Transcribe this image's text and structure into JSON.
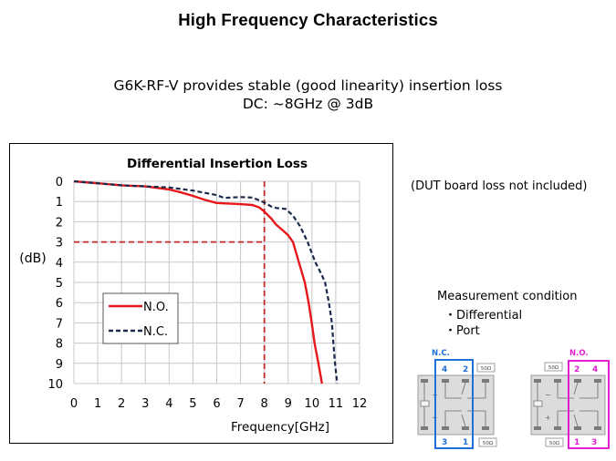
{
  "slide": {
    "title": "High Frequency Characteristics",
    "subtitle_line1": "G6K-RF-V provides stable (good linearity) insertion loss",
    "subtitle_line2": "DC: ~8GHz @ 3dB"
  },
  "side_panel": {
    "note": "(DUT board loss not included)",
    "measurement_title": "Measurement condition",
    "measurement_items": [
      "・Differential",
      "・Port"
    ]
  },
  "diagrams": {
    "nc": {
      "label": "N.C.",
      "ports_top": [
        "4",
        "2"
      ],
      "ports_bottom": [
        "3",
        "1"
      ],
      "termination_top": "50Ω",
      "termination_bottom": "50Ω",
      "color": "#1f6fd6"
    },
    "no": {
      "label": "N.O.",
      "ports_top": [
        "2",
        "4"
      ],
      "ports_bottom": [
        "1",
        "3"
      ],
      "termination_top": "50Ω",
      "termination_bottom": "50Ω",
      "color": "#e020d0"
    },
    "coil_minus": "−",
    "coil_plus": "+"
  },
  "chart_data": {
    "type": "line",
    "title": "Differential Insertion Loss",
    "xlabel": "Frequency[GHz]",
    "ylabel": "(dB)",
    "xlim": [
      0,
      12
    ],
    "ylim": [
      0,
      10
    ],
    "y_inverted": true,
    "grid": true,
    "x_ticks": [
      "0",
      "1",
      "2",
      "3",
      "4",
      "5",
      "6",
      "7",
      "8",
      "9",
      "10",
      "11",
      "12"
    ],
    "y_ticks": [
      "0",
      "1",
      "2",
      "3",
      "4",
      "5",
      "6",
      "7",
      "8",
      "9",
      "10"
    ],
    "legend_position": "center-left",
    "series": [
      {
        "name": "N.O.",
        "color": "#e8171b",
        "style": "solid",
        "x": [
          0,
          1,
          2,
          3,
          4,
          4.5,
          5,
          5.5,
          6,
          6.5,
          7,
          7.5,
          7.8,
          8,
          8.3,
          8.5,
          8.8,
          9,
          9.2,
          9.45,
          9.7,
          9.86,
          9.99,
          10.11,
          10.27,
          10.42
        ],
        "y": [
          0,
          0.1,
          0.2,
          0.25,
          0.4,
          0.55,
          0.72,
          0.92,
          1.07,
          1.1,
          1.13,
          1.17,
          1.3,
          1.5,
          1.85,
          2.15,
          2.45,
          2.67,
          3.0,
          4.0,
          5.0,
          6.0,
          7.0,
          8.0,
          9.0,
          10.0
        ]
      },
      {
        "name": "N.C.",
        "color": "#1b2a4a",
        "style": "dashed",
        "x": [
          0,
          1,
          2,
          3,
          4,
          5,
          6,
          6.3,
          7,
          7.5,
          8,
          8.3,
          8.5,
          8.9,
          9.2,
          9.5,
          9.82,
          10.14,
          10.4,
          10.55,
          10.71,
          10.84,
          10.9,
          10.97,
          11.06
        ],
        "y": [
          0,
          0.1,
          0.2,
          0.25,
          0.3,
          0.46,
          0.68,
          0.82,
          0.78,
          0.8,
          1.05,
          1.25,
          1.32,
          1.37,
          1.7,
          2.22,
          3.0,
          4.0,
          4.6,
          5.0,
          6.0,
          7.0,
          8.0,
          9.0,
          10.0
        ]
      }
    ],
    "annotations": [
      {
        "type": "vertical-reference-line",
        "x": 8,
        "from_y": 0,
        "to_y": 10,
        "color": "#c0282a",
        "style": "dashed"
      },
      {
        "type": "horizontal-reference-line",
        "y": 3,
        "from_x": 0,
        "to_x": 8,
        "color": "#c0282a",
        "style": "dashed"
      }
    ]
  }
}
